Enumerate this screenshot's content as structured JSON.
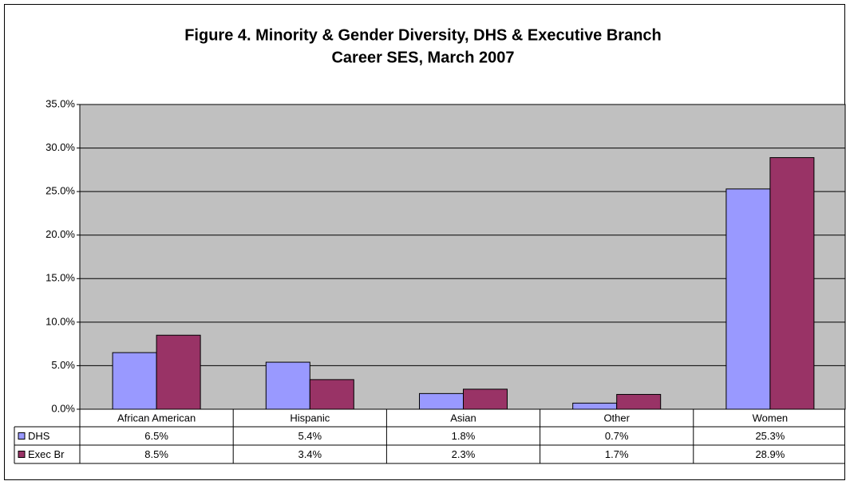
{
  "chart_data": {
    "type": "bar",
    "title": [
      "Figure 4. Minority & Gender Diversity, DHS & Executive Branch",
      "Career SES, March 2007"
    ],
    "categories": [
      "African American",
      "Hispanic",
      "Asian",
      "Other",
      "Women"
    ],
    "series": [
      {
        "name": "DHS",
        "color": "#9999ff",
        "values": [
          6.5,
          5.4,
          1.8,
          0.7,
          25.3
        ],
        "value_labels": [
          "6.5%",
          "5.4%",
          "1.8%",
          "0.7%",
          "25.3%"
        ]
      },
      {
        "name": "Exec Br",
        "color": "#993366",
        "values": [
          8.5,
          3.4,
          2.3,
          1.7,
          28.9
        ],
        "value_labels": [
          "8.5%",
          "3.4%",
          "2.3%",
          "1.7%",
          "28.9%"
        ]
      }
    ],
    "ylim": [
      0,
      35
    ],
    "yticks": [
      {
        "value": 0,
        "label": "0.0%"
      },
      {
        "value": 5,
        "label": "5.0%"
      },
      {
        "value": 10,
        "label": "10.0%"
      },
      {
        "value": 15,
        "label": "15.0%"
      },
      {
        "value": 20,
        "label": "20.0%"
      },
      {
        "value": 25,
        "label": "25.0%"
      },
      {
        "value": 30,
        "label": "30.0%"
      },
      {
        "value": 35,
        "label": "35.0%"
      }
    ],
    "grid": true,
    "plot_background": "#c0c0c0"
  }
}
